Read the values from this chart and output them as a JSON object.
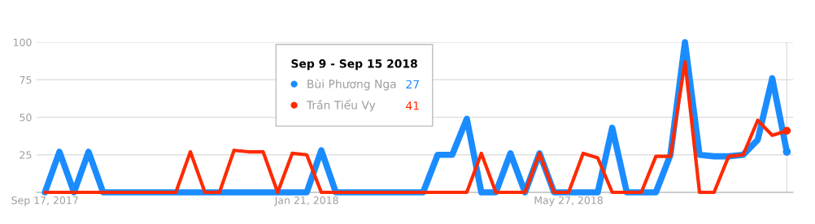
{
  "chart_data": {
    "type": "line",
    "x": [
      "2017-09-17",
      "2017-09-24",
      "2017-10-01",
      "2017-10-08",
      "2017-10-15",
      "2017-10-22",
      "2017-10-29",
      "2017-11-05",
      "2017-11-12",
      "2017-11-19",
      "2017-11-26",
      "2017-12-03",
      "2017-12-10",
      "2017-12-17",
      "2017-12-24",
      "2017-12-31",
      "2018-01-07",
      "2018-01-14",
      "2018-01-21",
      "2018-01-28",
      "2018-02-04",
      "2018-02-11",
      "2018-02-18",
      "2018-02-25",
      "2018-03-04",
      "2018-03-11",
      "2018-03-18",
      "2018-03-25",
      "2018-04-01",
      "2018-04-08",
      "2018-04-15",
      "2018-04-22",
      "2018-04-29",
      "2018-05-06",
      "2018-05-13",
      "2018-05-20",
      "2018-05-27",
      "2018-06-03",
      "2018-06-10",
      "2018-06-17",
      "2018-06-24",
      "2018-07-01",
      "2018-07-08",
      "2018-07-15",
      "2018-07-22",
      "2018-07-29",
      "2018-08-05",
      "2018-08-12",
      "2018-08-19",
      "2018-08-26",
      "2018-09-02",
      "2018-09-09"
    ],
    "series": [
      {
        "name": "Bùi Phương Nga",
        "color": "#1a8cff",
        "values": [
          0,
          27,
          0,
          27,
          0,
          0,
          0,
          0,
          0,
          0,
          0,
          0,
          0,
          0,
          0,
          0,
          0,
          0,
          0,
          28,
          0,
          0,
          0,
          0,
          0,
          0,
          0,
          25,
          25,
          49,
          0,
          0,
          26,
          0,
          26,
          0,
          0,
          0,
          0,
          43,
          0,
          0,
          0,
          25,
          100,
          25,
          24,
          24,
          25,
          35,
          76,
          27
        ]
      },
      {
        "name": "Trần Tiểu Vy",
        "color": "#ff2a00",
        "values": [
          0,
          0,
          0,
          0,
          0,
          0,
          0,
          0,
          0,
          0,
          27,
          0,
          0,
          28,
          27,
          27,
          0,
          26,
          25,
          0,
          0,
          0,
          0,
          0,
          0,
          0,
          0,
          0,
          0,
          0,
          26,
          0,
          0,
          0,
          26,
          0,
          0,
          26,
          23,
          0,
          0,
          0,
          24,
          24,
          87,
          0,
          0,
          24,
          25,
          48,
          38,
          41
        ]
      }
    ],
    "annotations": [
      "27",
      "41"
    ],
    "xlim": [
      "2017-09-13",
      "2018-09-12"
    ],
    "xticks": [
      {
        "value": "2017-09-17",
        "label": "Sep 17, 2017"
      },
      {
        "value": "2018-01-21",
        "label": "Jan 21, 2018"
      },
      {
        "value": "2018-05-27",
        "label": "May 27, 2018"
      }
    ],
    "ylim": [
      0,
      100
    ],
    "yticks": [
      25,
      50,
      75,
      100
    ],
    "grid": "y",
    "legend": "top",
    "legend_title": "Sep 9 - Sep 15 2018",
    "ref_lines": [
      {
        "axis": "x",
        "value": "2018-09-09",
        "label": null,
        "color": "#e0e0e0"
      }
    ],
    "line_style": "solid",
    "marker": "none"
  }
}
